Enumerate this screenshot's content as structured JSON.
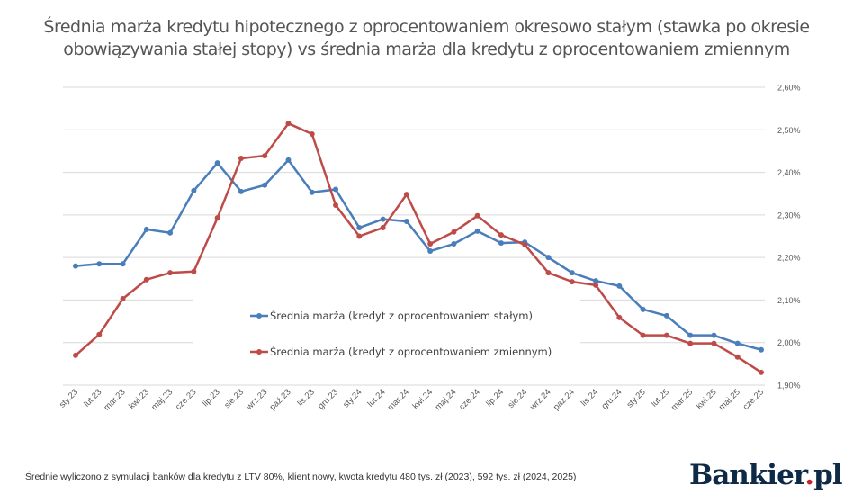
{
  "chart_data": {
    "type": "line",
    "title_line1": "Średnia marża kredytu hipotecznego z oprocentowaniem okresowo stałym (stawka po okresie",
    "title_line2": "obowiązywania stałej stopy) vs średnia marża dla kredytu z oprocentowaniem zmiennym",
    "xlabel": "",
    "ylabel": "",
    "ylim": [
      1.9,
      2.6
    ],
    "y_ticks": [
      "1,90%",
      "2,00%",
      "2,10%",
      "2,20%",
      "2,30%",
      "2,40%",
      "2,50%",
      "2,60%"
    ],
    "y_axis_side": "right",
    "grid": true,
    "legend_placement": "center",
    "categories": [
      "sty.23",
      "lut.23",
      "mar.23",
      "kwi.23",
      "maj.23",
      "cze.23",
      "lip.23",
      "sie.23",
      "wrz.23",
      "paź.23",
      "lis.23",
      "gru.23",
      "sty.24",
      "lut.24",
      "mar.24",
      "kwi.24",
      "maj.24",
      "cze.24",
      "lip.24",
      "sie.24",
      "wrz.24",
      "paź.24",
      "lis.24",
      "gru.24",
      "sty.25",
      "lut.25",
      "mar.25",
      "kwi.25",
      "maj.25",
      "cze.25"
    ],
    "series": [
      {
        "name": "Średnia marża (kredyt z oprocentowaniem stałym)",
        "color": "#4a7ebb",
        "values": [
          2.18,
          2.185,
          2.185,
          2.266,
          2.258,
          2.357,
          2.422,
          2.355,
          2.37,
          2.429,
          2.353,
          2.36,
          2.27,
          2.29,
          2.285,
          2.215,
          2.232,
          2.262,
          2.234,
          2.236,
          2.2,
          2.164,
          2.145,
          2.133,
          2.078,
          2.063,
          2.017,
          2.017,
          1.998,
          1.983
        ]
      },
      {
        "name": "Średnia marża (kredyt z oprocentowaniem zmiennym)",
        "color": "#be4b48",
        "values": [
          1.97,
          2.019,
          2.103,
          2.148,
          2.164,
          2.167,
          2.293,
          2.433,
          2.439,
          2.515,
          2.49,
          2.323,
          2.25,
          2.27,
          2.348,
          2.232,
          2.26,
          2.298,
          2.253,
          2.23,
          2.164,
          2.143,
          2.135,
          2.059,
          2.017,
          2.017,
          1.998,
          1.998,
          1.966,
          1.93
        ]
      }
    ]
  },
  "footer": "Średnie wyliczono z symulacji banków dla kredytu z LTV 80%, klient nowy, kwota kredytu 480 tys. zł (2023), 592 tys. zł (2024, 2025)",
  "logo": "Bankier.pl"
}
